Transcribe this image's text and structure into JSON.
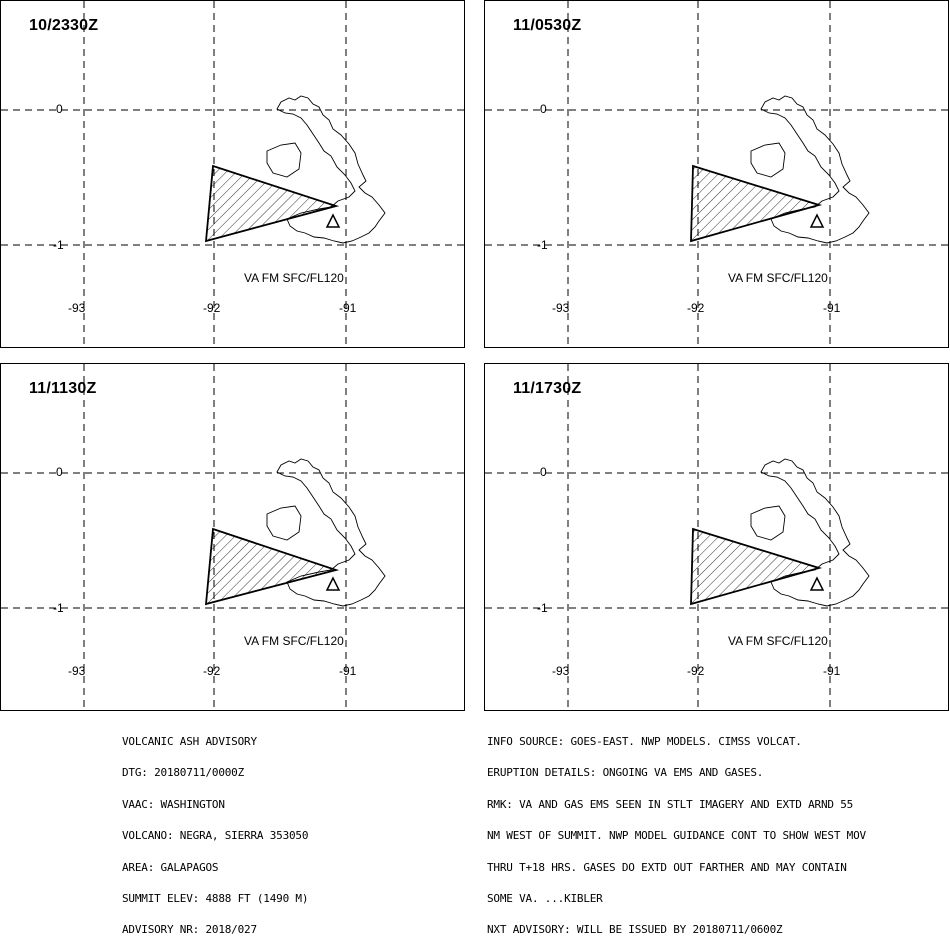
{
  "panels": [
    {
      "time": "10/2330Z",
      "label": "VA FM SFC/FL120"
    },
    {
      "time": "11/0530Z",
      "label": "VA FM SFC/FL120"
    },
    {
      "time": "11/1130Z",
      "label": "VA FM SFC/FL120"
    },
    {
      "time": "11/1730Z",
      "label": "VA FM SFC/FL120"
    }
  ],
  "axes": {
    "lat_labels": [
      "0",
      "-1"
    ],
    "lon_labels": [
      "-93",
      "-92",
      "-91"
    ]
  },
  "advisory_left": [
    "VOLCANIC ASH ADVISORY",
    "DTG: 20180711/0000Z",
    "VAAC: WASHINGTON",
    "VOLCANO: NEGRA, SIERRA 353050",
    "AREA: GALAPAGOS",
    "SUMMIT ELEV: 4888 FT (1490 M)",
    "ADVISORY NR: 2018/027"
  ],
  "advisory_right": [
    "INFO SOURCE: GOES-EAST. NWP MODELS. CIMSS VOLCAT.",
    "ERUPTION DETAILS: ONGOING VA EMS AND GASES.",
    "RMK: VA AND GAS EMS SEEN IN STLT IMAGERY AND EXTD ARND 55",
    "NM WEST OF SUMMIT. NWP MODEL GUIDANCE CONT TO SHOW WEST MOV",
    "THRU T+18 HRS. GASES DO EXTD OUT FARTHER AND MAY CONTAIN",
    "SOME VA. ...KIBLER",
    "NXT ADVISORY: WILL BE ISSUED BY 20180711/0600Z"
  ],
  "colors": {
    "line": "#000000",
    "background": "#ffffff"
  }
}
